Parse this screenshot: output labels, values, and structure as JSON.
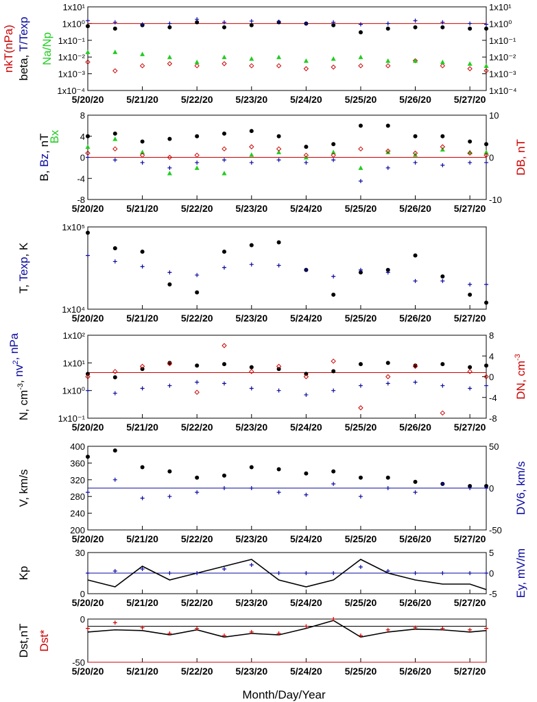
{
  "x_labels": [
    "5/20/20",
    "5/21/20",
    "5/22/20",
    "5/23/20",
    "5/24/20",
    "5/25/20",
    "5/26/20",
    "5/27/20"
  ],
  "xlabel": "Month/Day/Year",
  "colors": {
    "black": "#000000",
    "blue": "#0a0aa0",
    "red": "#cc0000",
    "green": "#22cc22"
  },
  "chart_data": [
    {
      "type": "scatter",
      "panel": "beta-ratio",
      "ylabel_parts": [
        {
          "text": "beta, ",
          "color": "black"
        },
        {
          "text": "T/Texp",
          "color": "blue"
        }
      ],
      "ylabel2_parts": [
        {
          "text": "nkT(nPa)",
          "color": "red"
        },
        {
          "text": "Na/Np",
          "color": "green"
        }
      ],
      "y_scale": "log",
      "ylim": [
        0.0001,
        10
      ],
      "yticks_left": [
        "1x10¹",
        "1x10⁰",
        "1x10⁻¹",
        "1x10⁻²",
        "1x10⁻³",
        "1x10⁻⁴"
      ],
      "yticks_right": [
        "1x10¹",
        "1x10⁰",
        "1x10⁻¹",
        "1x10⁻²",
        "1x10⁻³",
        "1x10⁻⁴"
      ],
      "reference_line": {
        "y": 1,
        "color": "red"
      },
      "series": [
        {
          "label": "beta",
          "color": "black",
          "marker": "dot",
          "x": [
            0.0,
            0.5,
            1.0,
            1.5,
            2.0,
            2.5,
            3.0,
            3.5,
            4.0,
            4.5,
            5.0,
            5.5,
            6.0,
            6.5,
            7.0,
            7.3
          ],
          "y": [
            0.7,
            0.5,
            0.8,
            0.6,
            1.2,
            0.6,
            0.8,
            1.2,
            1.0,
            0.8,
            0.3,
            0.5,
            0.6,
            0.6,
            0.5,
            0.5
          ]
        },
        {
          "label": "T/Texp",
          "color": "blue",
          "marker": "plus",
          "x": [
            0.0,
            0.5,
            1.0,
            1.5,
            2.0,
            2.5,
            3.0,
            3.5,
            4.0,
            4.5,
            5.0,
            5.5,
            6.0,
            6.5,
            7.0,
            7.3
          ],
          "y": [
            1.5,
            1.2,
            0.9,
            1.0,
            1.8,
            1.2,
            1.4,
            1.3,
            1.0,
            1.2,
            0.9,
            1.0,
            1.5,
            1.2,
            1.0,
            0.9
          ]
        },
        {
          "label": "nkT",
          "color": "red",
          "marker": "diamond",
          "x": [
            0.0,
            0.5,
            1.0,
            1.5,
            2.0,
            2.5,
            3.0,
            3.5,
            4.0,
            4.5,
            5.0,
            5.5,
            6.0,
            6.5,
            7.0,
            7.3
          ],
          "y": [
            0.005,
            0.0015,
            0.003,
            0.004,
            0.003,
            0.004,
            0.003,
            0.003,
            0.002,
            0.0025,
            0.003,
            0.003,
            0.006,
            0.003,
            0.002,
            0.0015
          ]
        },
        {
          "label": "Na/Np",
          "color": "green",
          "marker": "triangle",
          "x": [
            0.0,
            0.5,
            1.0,
            1.5,
            2.0,
            2.5,
            3.0,
            3.5,
            4.0,
            4.5,
            5.0,
            5.5,
            6.0,
            6.5,
            7.0,
            7.3
          ],
          "y": [
            0.02,
            0.02,
            0.015,
            0.01,
            0.005,
            0.01,
            0.008,
            0.01,
            0.006,
            0.008,
            0.01,
            0.006,
            0.006,
            0.005,
            0.004,
            0.003
          ]
        }
      ]
    },
    {
      "type": "scatter",
      "panel": "magnetic-field",
      "ylabel_parts": [
        {
          "text": "B, ",
          "color": "black"
        },
        {
          "text": "Bz",
          "color": "blue"
        },
        {
          "text": ", nT",
          "color": "black"
        }
      ],
      "ylabel_extra": {
        "text": "Bx",
        "color": "green"
      },
      "ylabel2_parts": [
        {
          "text": "DB, nT",
          "color": "red"
        }
      ],
      "y_scale": "linear",
      "ylim": [
        -8,
        8
      ],
      "yticks_left": [
        "8",
        "4",
        "0",
        "-4",
        "-8"
      ],
      "ylim2": [
        -10,
        10
      ],
      "yticks_right": [
        "10",
        "0",
        "-10"
      ],
      "reference_line": {
        "y": 0,
        "color": "red"
      },
      "series": [
        {
          "label": "B",
          "color": "black",
          "marker": "dot",
          "x": [
            0.0,
            0.5,
            1.0,
            1.5,
            2.0,
            2.5,
            3.0,
            3.5,
            4.0,
            4.5,
            5.0,
            5.5,
            6.0,
            6.5,
            7.0,
            7.3
          ],
          "y": [
            4.0,
            4.5,
            3.0,
            3.5,
            4.0,
            4.5,
            5.0,
            4.0,
            2.0,
            2.5,
            6.0,
            6.0,
            4.0,
            4.0,
            3.0,
            2.5
          ]
        },
        {
          "label": "Bz",
          "color": "blue",
          "marker": "plus",
          "x": [
            0.0,
            0.5,
            1.0,
            1.5,
            2.0,
            2.5,
            3.0,
            3.5,
            4.0,
            4.5,
            5.0,
            5.5,
            6.0,
            6.5,
            7.0,
            7.3
          ],
          "y": [
            0.0,
            -0.5,
            -1.0,
            -2.0,
            -1.0,
            -0.5,
            -1.0,
            -0.5,
            -1.0,
            -0.5,
            -4.5,
            -2.0,
            -1.0,
            -1.5,
            -1.0,
            -1.0
          ]
        },
        {
          "label": "Bx",
          "color": "green",
          "marker": "triangle",
          "x": [
            0.0,
            0.5,
            1.0,
            1.5,
            2.0,
            2.5,
            3.0,
            3.5,
            4.0,
            4.5,
            5.0,
            5.5,
            6.0,
            6.5,
            7.0,
            7.3
          ],
          "y": [
            2.0,
            3.5,
            1.0,
            -3.0,
            -2.0,
            -3.0,
            0.5,
            1.0,
            0.0,
            1.0,
            -2.0,
            1.0,
            0.5,
            1.5,
            1.0,
            1.0
          ]
        },
        {
          "label": "DB",
          "color": "red",
          "marker": "diamond",
          "y_axis": "right",
          "x": [
            0.0,
            0.5,
            1.0,
            1.5,
            2.0,
            2.5,
            3.0,
            3.5,
            4.0,
            4.5,
            5.0,
            5.5,
            6.0,
            6.5,
            7.0,
            7.3
          ],
          "y": [
            1.0,
            2.0,
            0.5,
            0.0,
            0.5,
            2.0,
            2.5,
            2.0,
            0.5,
            0.5,
            2.0,
            1.5,
            1.0,
            2.5,
            1.0,
            0.5
          ]
        }
      ]
    },
    {
      "type": "scatter",
      "panel": "temperature",
      "ylabel_parts": [
        {
          "text": "T, ",
          "color": "black"
        },
        {
          "text": "Texp",
          "color": "blue"
        },
        {
          "text": ", K",
          "color": "black"
        }
      ],
      "y_scale": "log",
      "ylim": [
        10000,
        100000
      ],
      "yticks_left": [
        "1x10⁵",
        "1x10⁴"
      ],
      "series": [
        {
          "label": "T",
          "color": "black",
          "marker": "dot",
          "x": [
            0.0,
            0.5,
            1.0,
            1.5,
            2.0,
            2.5,
            3.0,
            3.5,
            4.0,
            4.5,
            5.0,
            5.5,
            6.0,
            6.5,
            7.0,
            7.3
          ],
          "y": [
            85000,
            55000,
            50000,
            20000,
            16000,
            50000,
            60000,
            65000,
            30000,
            15000,
            28000,
            30000,
            45000,
            25000,
            15000,
            12000
          ]
        },
        {
          "label": "Texp",
          "color": "blue",
          "marker": "plus",
          "x": [
            0.0,
            0.5,
            1.0,
            1.5,
            2.0,
            2.5,
            3.0,
            3.5,
            4.0,
            4.5,
            5.0,
            5.5,
            6.0,
            6.5,
            7.0,
            7.3
          ],
          "y": [
            45000,
            38000,
            33000,
            28000,
            26000,
            32000,
            35000,
            34000,
            30000,
            25000,
            30000,
            28000,
            22000,
            22000,
            20000,
            20000
          ]
        }
      ]
    },
    {
      "type": "scatter",
      "panel": "density-pressure",
      "ylabel_parts": [
        {
          "text": "N, cm",
          "color": "black"
        },
        {
          "text": "-3",
          "color": "black",
          "sup": true
        },
        {
          "text": ", ",
          "color": "black"
        },
        {
          "text": "nv",
          "color": "blue"
        },
        {
          "text": "2",
          "color": "blue",
          "sup": true
        },
        {
          "text": ", nPa",
          "color": "blue"
        }
      ],
      "ylabel2_parts": [
        {
          "text": "DN, cm",
          "color": "red"
        },
        {
          "text": "-3",
          "color": "red",
          "sup": true
        }
      ],
      "y_scale": "log",
      "ylim": [
        0.1,
        100
      ],
      "yticks_left": [
        "1x10²",
        "1x10¹",
        "1x10⁰",
        "1x10⁻¹"
      ],
      "ylim2": [
        -8,
        8
      ],
      "yticks_right": [
        "8",
        "4",
        "0",
        "-4",
        "-8"
      ],
      "reference_line": {
        "y": 4,
        "color": "red"
      },
      "series": [
        {
          "label": "N",
          "color": "black",
          "marker": "dot",
          "x": [
            0.0,
            0.5,
            1.0,
            1.5,
            2.0,
            2.5,
            3.0,
            3.5,
            4.0,
            4.5,
            5.0,
            5.5,
            6.0,
            6.5,
            7.0,
            7.3
          ],
          "y": [
            4.0,
            3.0,
            6.0,
            10.0,
            8.0,
            9.0,
            7.0,
            6.0,
            4.0,
            5.0,
            9.0,
            10.0,
            8.0,
            9.0,
            7.0,
            8.0
          ]
        },
        {
          "label": "nv2",
          "color": "blue",
          "marker": "plus",
          "x": [
            0.0,
            0.5,
            1.0,
            1.5,
            2.0,
            2.5,
            3.0,
            3.5,
            4.0,
            4.5,
            5.0,
            5.5,
            6.0,
            6.5,
            7.0,
            7.3
          ],
          "y": [
            1.0,
            0.8,
            1.2,
            1.5,
            2.0,
            1.8,
            1.2,
            1.0,
            0.7,
            1.0,
            1.5,
            1.8,
            2.0,
            1.5,
            1.2,
            1.5
          ]
        },
        {
          "label": "DN",
          "color": "red",
          "marker": "diamond",
          "y_axis": "right",
          "x": [
            0.0,
            0.5,
            1.0,
            1.5,
            2.0,
            2.5,
            3.0,
            3.5,
            4.0,
            4.5,
            5.0,
            5.5,
            6.0,
            6.5,
            7.0,
            7.3
          ],
          "y": [
            0.0,
            1.0,
            2.0,
            2.5,
            -3.0,
            6.0,
            1.0,
            2.0,
            0.0,
            3.0,
            -6.0,
            0.0,
            2.0,
            -7.0,
            1.0,
            0.0
          ]
        }
      ]
    },
    {
      "type": "scatter",
      "panel": "velocity",
      "ylabel_parts": [
        {
          "text": "V, km/s",
          "color": "black"
        }
      ],
      "ylabel2_parts": [
        {
          "text": "DV6, km/s",
          "color": "blue"
        }
      ],
      "y_scale": "linear",
      "ylim": [
        200,
        400
      ],
      "yticks_left": [
        "400",
        "360",
        "320",
        "280",
        "240",
        "200"
      ],
      "ylim2": [
        -50,
        50
      ],
      "yticks_right": [
        "50",
        "0",
        "-50"
      ],
      "reference_line": {
        "y": 300,
        "color": "blue"
      },
      "series": [
        {
          "label": "V",
          "color": "black",
          "marker": "dot",
          "x": [
            0.0,
            0.5,
            1.0,
            1.5,
            2.0,
            2.5,
            3.0,
            3.5,
            4.0,
            4.5,
            5.0,
            5.5,
            6.0,
            6.5,
            7.0,
            7.3
          ],
          "y": [
            375,
            390,
            350,
            340,
            325,
            330,
            350,
            345,
            335,
            340,
            325,
            325,
            315,
            310,
            305,
            305
          ]
        },
        {
          "label": "DV6",
          "color": "blue",
          "marker": "plus",
          "y_axis": "right",
          "x": [
            0.0,
            0.5,
            1.0,
            1.5,
            2.0,
            2.5,
            3.0,
            3.5,
            4.0,
            4.5,
            5.0,
            5.5,
            6.0,
            6.5,
            7.0,
            7.3
          ],
          "y": [
            -5,
            10,
            -12,
            -10,
            -5,
            0,
            0,
            -5,
            -8,
            5,
            -10,
            0,
            -5,
            5,
            0,
            0
          ]
        }
      ]
    },
    {
      "type": "line",
      "panel": "kp-ey",
      "ylabel_parts": [
        {
          "text": "Kp",
          "color": "black"
        }
      ],
      "ylabel2_parts": [
        {
          "text": "Ey, mV/m",
          "color": "blue"
        }
      ],
      "y_scale": "linear",
      "ylim": [
        0,
        30
      ],
      "yticks_left": [
        "30",
        "0"
      ],
      "ylim2": [
        -5,
        5
      ],
      "yticks_right": [
        "5",
        "0",
        "-5"
      ],
      "reference_line": {
        "y": 15,
        "color": "blue"
      },
      "series": [
        {
          "label": "Kp",
          "color": "black",
          "marker": "line",
          "x": [
            0.0,
            0.5,
            1.0,
            1.5,
            2.0,
            2.5,
            3.0,
            3.5,
            4.0,
            4.5,
            5.0,
            5.5,
            6.0,
            6.5,
            7.0,
            7.3
          ],
          "y": [
            10,
            5,
            20,
            10,
            15,
            20,
            25,
            10,
            5,
            10,
            25,
            15,
            10,
            7,
            7,
            3
          ]
        },
        {
          "label": "Ey",
          "color": "blue",
          "marker": "plus",
          "y_axis": "right",
          "x": [
            0.0,
            0.5,
            1.0,
            1.5,
            2.0,
            2.5,
            3.0,
            3.5,
            4.0,
            4.5,
            5.0,
            5.5,
            6.0,
            6.5,
            7.0,
            7.3
          ],
          "y": [
            0.0,
            0.5,
            1.0,
            0.0,
            0.0,
            1.0,
            2.0,
            0.0,
            0.0,
            0.0,
            1.5,
            0.5,
            0.0,
            0.0,
            0.0,
            0.0
          ]
        }
      ]
    },
    {
      "type": "line",
      "panel": "dst",
      "ylabel_parts": [
        {
          "text": "Dst,nT",
          "color": "black"
        }
      ],
      "ylabel2_parts": [
        {
          "text": "Dst*",
          "color": "red"
        }
      ],
      "y_scale": "linear",
      "ylim": [
        -50,
        10
      ],
      "yticks_left": [
        "0",
        "-50"
      ],
      "reference_line": {
        "y": 0,
        "color": "black"
      },
      "bottom_line": {
        "y": -50,
        "color": "red"
      },
      "series": [
        {
          "label": "Dst",
          "color": "black",
          "marker": "line",
          "x": [
            0.0,
            0.5,
            1.0,
            1.5,
            2.0,
            2.5,
            3.0,
            3.5,
            4.0,
            4.5,
            5.0,
            5.5,
            6.0,
            6.5,
            7.0,
            7.3
          ],
          "y": [
            -8,
            -5,
            -6,
            -12,
            -5,
            -15,
            -10,
            -12,
            -3,
            8,
            -15,
            -8,
            -4,
            -5,
            -8,
            -6
          ]
        },
        {
          "label": "Dst*",
          "color": "red",
          "marker": "plus",
          "x": [
            0.0,
            0.5,
            1.0,
            1.5,
            2.0,
            2.5,
            3.0,
            3.5,
            4.0,
            4.5,
            5.0,
            5.5,
            6.0,
            6.5,
            7.0,
            7.3
          ],
          "y": [
            -3,
            5,
            -2,
            -10,
            -3,
            -13,
            -8,
            -10,
            0,
            10,
            -13,
            -5,
            -2,
            -3,
            -5,
            -3
          ]
        }
      ]
    }
  ]
}
